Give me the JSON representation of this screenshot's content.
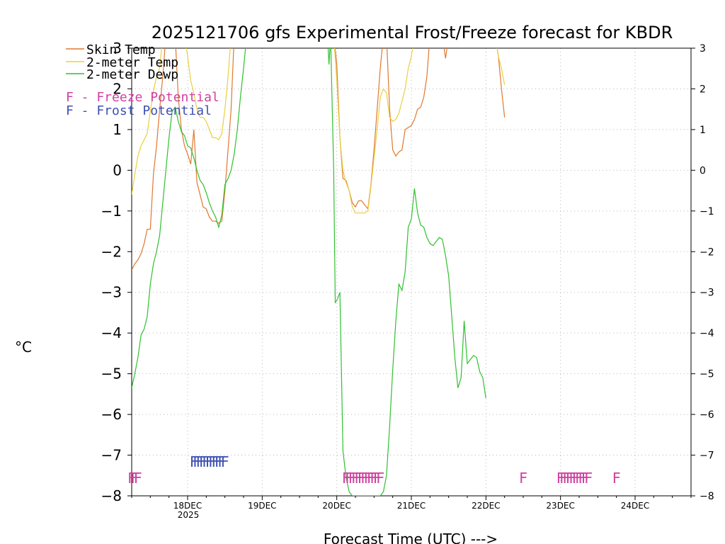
{
  "chart_data": {
    "type": "line",
    "title": "2025121706 gfs Experimental Frost/Freeze forecast for KBDR",
    "ylabel": "°C",
    "xlabel": "Forecast Time (UTC) --->",
    "ylim": [
      -8,
      3
    ],
    "x_range_hours": [
      0,
      180
    ],
    "grid": true,
    "yticks": [
      "3",
      "2",
      "1",
      "0",
      "−1",
      "−2",
      "−3",
      "−4",
      "−5",
      "−6",
      "−7",
      "−8"
    ],
    "ytick_values": [
      3,
      2,
      1,
      0,
      -1,
      -2,
      -3,
      -4,
      -5,
      -6,
      -7,
      -8
    ],
    "xticks": [
      {
        "label": "18DEC",
        "hour": 18
      },
      {
        "label": "19DEC",
        "hour": 42
      },
      {
        "label": "20DEC",
        "hour": 66
      },
      {
        "label": "21DEC",
        "hour": 90
      },
      {
        "label": "22DEC",
        "hour": 114
      },
      {
        "label": "23DEC",
        "hour": 138
      },
      {
        "label": "24DEC",
        "hour": 162
      }
    ],
    "year_label": "2025",
    "legend": {
      "placement": "top-left",
      "entries": [
        "Skin Temp",
        "2-meter Temp",
        "2-meter Dewp"
      ],
      "freeze_label": "F - Freeze Potential",
      "frost_label": "F - Frost Potential"
    },
    "series": [
      {
        "name": "Skin Temp",
        "color": "#e07830",
        "points": [
          [
            0,
            -2.45
          ],
          [
            1,
            -2.3
          ],
          [
            2,
            -2.2
          ],
          [
            3,
            -2.05
          ],
          [
            4,
            -1.8
          ],
          [
            5,
            -1.45
          ],
          [
            6,
            -1.45
          ],
          [
            7,
            -0.1
          ],
          [
            8,
            0.6
          ],
          [
            9,
            1.5
          ],
          [
            10,
            2.3
          ],
          [
            11,
            3.3
          ],
          [
            14,
            3.3
          ],
          [
            15,
            1.8
          ],
          [
            16,
            1.0
          ],
          [
            17,
            0.6
          ],
          [
            18,
            0.4
          ],
          [
            19,
            0.15
          ],
          [
            20,
            1.0
          ],
          [
            21,
            -0.3
          ],
          [
            22,
            -0.6
          ],
          [
            23,
            -0.9
          ],
          [
            24,
            -0.95
          ],
          [
            25,
            -1.15
          ],
          [
            26,
            -1.25
          ],
          [
            27,
            -1.25
          ],
          [
            28,
            -1.3
          ],
          [
            29,
            -1.25
          ],
          [
            30,
            -0.5
          ],
          [
            31,
            0.5
          ],
          [
            32,
            1.5
          ],
          [
            33,
            3.3
          ],
          [
            65,
            3.3
          ],
          [
            66,
            2.6
          ],
          [
            67,
            0.8
          ],
          [
            68,
            -0.2
          ],
          [
            69,
            -0.25
          ],
          [
            70,
            -0.5
          ],
          [
            71,
            -0.8
          ],
          [
            72,
            -0.9
          ],
          [
            73,
            -0.75
          ],
          [
            74,
            -0.75
          ],
          [
            75,
            -0.85
          ],
          [
            76,
            -0.95
          ],
          [
            77,
            -0.35
          ],
          [
            78,
            0.5
          ],
          [
            79,
            1.5
          ],
          [
            80,
            2.5
          ],
          [
            81,
            3.3
          ],
          [
            82,
            3.3
          ],
          [
            83,
            1.5
          ],
          [
            84,
            0.5
          ],
          [
            85,
            0.35
          ],
          [
            86,
            0.45
          ],
          [
            87,
            0.5
          ],
          [
            88,
            1.0
          ],
          [
            89,
            1.05
          ],
          [
            90,
            1.1
          ],
          [
            91,
            1.25
          ],
          [
            92,
            1.5
          ],
          [
            93,
            1.55
          ],
          [
            94,
            1.8
          ],
          [
            95,
            2.3
          ],
          [
            96,
            3.3
          ],
          [
            100,
            3.3
          ],
          [
            101,
            2.75
          ],
          [
            102,
            3.3
          ],
          [
            117,
            3.3
          ],
          [
            118,
            2.8
          ],
          [
            119,
            2.0
          ],
          [
            120,
            1.3
          ]
        ]
      },
      {
        "name": "2-meter Temp",
        "color": "#e8d040",
        "points": [
          [
            0,
            -0.6
          ],
          [
            1,
            -0.1
          ],
          [
            2,
            0.35
          ],
          [
            3,
            0.6
          ],
          [
            4,
            0.75
          ],
          [
            5,
            0.9
          ],
          [
            6,
            1.45
          ],
          [
            7,
            1.95
          ],
          [
            8,
            2.3
          ],
          [
            9,
            2.5
          ],
          [
            10,
            3.3
          ],
          [
            17,
            3.3
          ],
          [
            18,
            2.8
          ],
          [
            19,
            2.2
          ],
          [
            20,
            1.9
          ],
          [
            21,
            1.5
          ],
          [
            22,
            1.3
          ],
          [
            23,
            1.3
          ],
          [
            24,
            1.2
          ],
          [
            25,
            1.0
          ],
          [
            26,
            0.8
          ],
          [
            27,
            0.8
          ],
          [
            28,
            0.75
          ],
          [
            29,
            0.9
          ],
          [
            30,
            1.5
          ],
          [
            31,
            2.3
          ],
          [
            32,
            3.3
          ],
          [
            65,
            3.3
          ],
          [
            66,
            2.2
          ],
          [
            67,
            0.8
          ],
          [
            68,
            0.0
          ],
          [
            69,
            -0.3
          ],
          [
            70,
            -0.5
          ],
          [
            71,
            -0.9
          ],
          [
            72,
            -1.05
          ],
          [
            73,
            -1.05
          ],
          [
            74,
            -1.05
          ],
          [
            75,
            -1.05
          ],
          [
            76,
            -1.0
          ],
          [
            77,
            -0.4
          ],
          [
            78,
            0.3
          ],
          [
            79,
            1.0
          ],
          [
            80,
            1.8
          ],
          [
            81,
            2.0
          ],
          [
            82,
            1.9
          ],
          [
            83,
            1.3
          ],
          [
            84,
            1.2
          ],
          [
            85,
            1.25
          ],
          [
            86,
            1.4
          ],
          [
            87,
            1.7
          ],
          [
            88,
            2.0
          ],
          [
            89,
            2.5
          ],
          [
            90,
            2.8
          ],
          [
            91,
            3.3
          ],
          [
            117,
            3.3
          ],
          [
            118,
            2.8
          ],
          [
            119,
            2.5
          ],
          [
            120,
            2.1
          ]
        ]
      },
      {
        "name": "2-meter Dewp",
        "color": "#30c030",
        "points": [
          [
            0,
            -5.35
          ],
          [
            1,
            -5.0
          ],
          [
            2,
            -4.6
          ],
          [
            3,
            -4.05
          ],
          [
            4,
            -3.9
          ],
          [
            5,
            -3.6
          ],
          [
            6,
            -2.8
          ],
          [
            7,
            -2.3
          ],
          [
            8,
            -2.0
          ],
          [
            9,
            -1.6
          ],
          [
            10,
            -0.8
          ],
          [
            11,
            0.0
          ],
          [
            12,
            0.8
          ],
          [
            13,
            1.45
          ],
          [
            14,
            1.55
          ],
          [
            15,
            1.2
          ],
          [
            16,
            0.95
          ],
          [
            17,
            0.85
          ],
          [
            18,
            0.6
          ],
          [
            19,
            0.55
          ],
          [
            20,
            0.3
          ],
          [
            21,
            0.0
          ],
          [
            22,
            -0.25
          ],
          [
            23,
            -0.35
          ],
          [
            24,
            -0.55
          ],
          [
            25,
            -0.8
          ],
          [
            26,
            -1.0
          ],
          [
            27,
            -1.15
          ],
          [
            28,
            -1.4
          ],
          [
            29,
            -1.1
          ],
          [
            30,
            -0.35
          ],
          [
            31,
            -0.2
          ],
          [
            32,
            0.0
          ],
          [
            33,
            0.4
          ],
          [
            34,
            1.0
          ],
          [
            35,
            1.8
          ],
          [
            36,
            2.5
          ],
          [
            37,
            3.3
          ],
          [
            63,
            3.3
          ],
          [
            63.5,
            2.6
          ],
          [
            64,
            3.3
          ],
          [
            65,
            0.0
          ],
          [
            65.5,
            -3.25
          ],
          [
            66,
            -3.2
          ],
          [
            67,
            -3.0
          ],
          [
            68,
            -6.9
          ],
          [
            69,
            -7.55
          ],
          [
            70,
            -7.9
          ],
          [
            71,
            -8.0
          ],
          [
            79,
            -8.0
          ],
          [
            80,
            -8.0
          ],
          [
            81,
            -7.9
          ],
          [
            82,
            -7.5
          ],
          [
            83,
            -6.3
          ],
          [
            84,
            -4.9
          ],
          [
            85,
            -3.7
          ],
          [
            86,
            -2.8
          ],
          [
            87,
            -2.95
          ],
          [
            88,
            -2.5
          ],
          [
            89,
            -1.4
          ],
          [
            90,
            -1.2
          ],
          [
            91,
            -0.45
          ],
          [
            92,
            -1.05
          ],
          [
            93,
            -1.35
          ],
          [
            94,
            -1.4
          ],
          [
            95,
            -1.65
          ],
          [
            96,
            -1.8
          ],
          [
            97,
            -1.85
          ],
          [
            98,
            -1.75
          ],
          [
            99,
            -1.65
          ],
          [
            100,
            -1.7
          ],
          [
            101,
            -2.1
          ],
          [
            102,
            -2.6
          ],
          [
            103,
            -3.6
          ],
          [
            104,
            -4.6
          ],
          [
            105,
            -5.35
          ],
          [
            106,
            -5.1
          ],
          [
            107,
            -3.7
          ],
          [
            108,
            -4.75
          ],
          [
            109,
            -4.65
          ],
          [
            110,
            -4.55
          ],
          [
            111,
            -4.6
          ],
          [
            112,
            -4.95
          ],
          [
            113,
            -5.1
          ],
          [
            114,
            -5.6
          ]
        ]
      }
    ],
    "freeze_markers": {
      "color": "#d040a0",
      "symbol": "F",
      "hours": [
        0,
        1,
        2,
        69,
        70,
        71,
        72,
        73,
        74,
        75,
        76,
        77,
        78,
        79,
        80,
        126,
        138,
        139,
        140,
        141,
        142,
        143,
        144,
        145,
        146,
        147,
        156
      ]
    },
    "frost_markers": {
      "color": "#4050b0",
      "symbol": "F",
      "hours": [
        20,
        21,
        22,
        23,
        24,
        25,
        26,
        27,
        28,
        29,
        30
      ]
    }
  }
}
